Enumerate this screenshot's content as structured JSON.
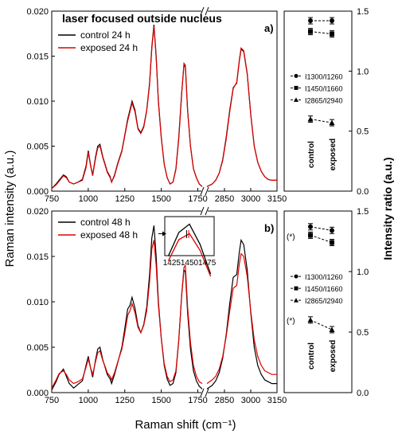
{
  "figure": {
    "ylabel_left": "Raman intensity (a.u.)",
    "xlabel": "Raman shift (cm⁻¹)",
    "ylabel_right": "Intensity ratio (a.u.)"
  },
  "chart_data": [
    {
      "type": "line",
      "panel": "a)",
      "title": "laser focused outside nucleus",
      "x_axis_break": [
        1780,
        2750
      ],
      "xlim": [
        750,
        3150
      ],
      "ylim": [
        0,
        0.02
      ],
      "xticks": [
        "750",
        "1000",
        "1250",
        "1500",
        "1750",
        "2850",
        "3000",
        "3150"
      ],
      "yticks": [
        "0.000",
        "0.005",
        "0.010",
        "0.015",
        "0.020"
      ],
      "grid": false,
      "legend_position": "top-left",
      "series": [
        {
          "name": "control 24 h",
          "color": "#000000",
          "x": [
            750,
            780,
            800,
            830,
            850,
            870,
            900,
            930,
            960,
            985,
            1000,
            1015,
            1030,
            1050,
            1065,
            1080,
            1100,
            1115,
            1130,
            1150,
            1160,
            1180,
            1200,
            1230,
            1250,
            1270,
            1285,
            1300,
            1320,
            1340,
            1360,
            1380,
            1400,
            1420,
            1435,
            1450,
            1465,
            1480,
            1500,
            1520,
            1540,
            1560,
            1580,
            1600,
            1620,
            1640,
            1655,
            1665,
            1680,
            1700,
            1720,
            1740,
            1760,
            1780,
            2750,
            2780,
            2800,
            2820,
            2840,
            2860,
            2880,
            2900,
            2920,
            2935,
            2945,
            2960,
            2980,
            3000,
            3020,
            3040,
            3060,
            3080,
            3100,
            3120,
            3150
          ],
          "y": [
            0.0003,
            0.0008,
            0.0012,
            0.0018,
            0.0016,
            0.001,
            0.0008,
            0.001,
            0.0013,
            0.0028,
            0.0045,
            0.003,
            0.0018,
            0.0038,
            0.005,
            0.0052,
            0.0038,
            0.003,
            0.0022,
            0.0016,
            0.001,
            0.0018,
            0.003,
            0.0045,
            0.0062,
            0.008,
            0.009,
            0.01,
            0.009,
            0.007,
            0.0065,
            0.0072,
            0.009,
            0.012,
            0.016,
            0.0185,
            0.015,
            0.01,
            0.006,
            0.003,
            0.0015,
            0.0008,
            0.001,
            0.0025,
            0.006,
            0.011,
            0.014,
            0.0138,
            0.009,
            0.005,
            0.0025,
            0.0015,
            0.0008,
            0.0005,
            0.0005,
            0.0008,
            0.0012,
            0.002,
            0.0035,
            0.006,
            0.009,
            0.0115,
            0.012,
            0.0145,
            0.0158,
            0.0155,
            0.013,
            0.0085,
            0.005,
            0.0032,
            0.0022,
            0.0016,
            0.0013,
            0.0012,
            0.0012
          ]
        },
        {
          "name": "exposed 24 h",
          "color": "#e00000",
          "x": [
            750,
            780,
            800,
            830,
            850,
            870,
            900,
            930,
            960,
            985,
            1000,
            1015,
            1030,
            1050,
            1065,
            1080,
            1100,
            1115,
            1130,
            1150,
            1160,
            1180,
            1200,
            1230,
            1250,
            1270,
            1285,
            1300,
            1320,
            1340,
            1360,
            1380,
            1400,
            1420,
            1435,
            1450,
            1465,
            1480,
            1500,
            1520,
            1540,
            1560,
            1580,
            1600,
            1620,
            1640,
            1655,
            1665,
            1680,
            1700,
            1720,
            1740,
            1760,
            1780,
            2750,
            2780,
            2800,
            2820,
            2840,
            2860,
            2880,
            2900,
            2920,
            2935,
            2945,
            2960,
            2980,
            3000,
            3020,
            3040,
            3060,
            3080,
            3100,
            3120,
            3150
          ],
          "y": [
            0.0003,
            0.0007,
            0.0011,
            0.0017,
            0.0015,
            0.001,
            0.0008,
            0.001,
            0.0012,
            0.0026,
            0.0043,
            0.0029,
            0.0017,
            0.0036,
            0.0048,
            0.005,
            0.0037,
            0.0029,
            0.0021,
            0.0015,
            0.001,
            0.0017,
            0.0029,
            0.0044,
            0.0061,
            0.0078,
            0.0088,
            0.0098,
            0.0088,
            0.0069,
            0.0064,
            0.0071,
            0.0089,
            0.0118,
            0.0158,
            0.0183,
            0.0148,
            0.0098,
            0.0059,
            0.003,
            0.0015,
            0.0008,
            0.001,
            0.0024,
            0.0058,
            0.0108,
            0.0142,
            0.014,
            0.0089,
            0.005,
            0.0025,
            0.0015,
            0.0008,
            0.0005,
            0.0005,
            0.0008,
            0.0012,
            0.002,
            0.0034,
            0.0058,
            0.0088,
            0.0114,
            0.0121,
            0.0146,
            0.0159,
            0.0156,
            0.0131,
            0.0086,
            0.005,
            0.0032,
            0.0022,
            0.0016,
            0.0013,
            0.0012,
            0.0012
          ]
        }
      ]
    },
    {
      "type": "line",
      "panel": "b)",
      "x_axis_break": [
        1780,
        2750
      ],
      "xlim": [
        750,
        3150
      ],
      "ylim": [
        0,
        0.02
      ],
      "xticks": [
        "750",
        "1000",
        "1250",
        "1500",
        "1750",
        "2850",
        "3000",
        "3150"
      ],
      "yticks": [
        "0.000",
        "0.005",
        "0.010",
        "0.015",
        "0.020"
      ],
      "grid": false,
      "legend_position": "top-left",
      "inset": {
        "xticks": [
          "1425",
          "1450",
          "1475"
        ],
        "xlim": [
          1415,
          1485
        ]
      },
      "series": [
        {
          "name": "control 48 h",
          "color": "#000000",
          "x": [
            750,
            780,
            800,
            830,
            850,
            870,
            900,
            930,
            960,
            985,
            1000,
            1015,
            1030,
            1050,
            1065,
            1080,
            1100,
            1115,
            1130,
            1150,
            1160,
            1180,
            1200,
            1230,
            1250,
            1270,
            1285,
            1300,
            1320,
            1340,
            1360,
            1380,
            1400,
            1420,
            1435,
            1450,
            1465,
            1480,
            1500,
            1520,
            1540,
            1560,
            1580,
            1600,
            1620,
            1640,
            1655,
            1665,
            1680,
            1700,
            1720,
            1740,
            1760,
            1780,
            2750,
            2780,
            2800,
            2820,
            2840,
            2860,
            2880,
            2900,
            2920,
            2935,
            2945,
            2960,
            2980,
            3000,
            3020,
            3040,
            3060,
            3080,
            3100,
            3120,
            3150
          ],
          "y": [
            0.0003,
            0.0012,
            0.002,
            0.0026,
            0.0018,
            0.001,
            0.0005,
            0.0009,
            0.0013,
            0.003,
            0.004,
            0.0028,
            0.0017,
            0.0036,
            0.0048,
            0.005,
            0.0036,
            0.0028,
            0.002,
            0.0015,
            0.001,
            0.002,
            0.0032,
            0.005,
            0.007,
            0.0092,
            0.0096,
            0.0105,
            0.0093,
            0.0074,
            0.0066,
            0.0075,
            0.0094,
            0.013,
            0.017,
            0.0184,
            0.015,
            0.01,
            0.006,
            0.003,
            0.0015,
            0.0008,
            0.001,
            0.0022,
            0.0058,
            0.0108,
            0.0135,
            0.0133,
            0.0088,
            0.0048,
            0.0024,
            0.0013,
            0.0007,
            0.0004,
            0.0004,
            0.0008,
            0.0013,
            0.0022,
            0.0038,
            0.0064,
            0.0098,
            0.0127,
            0.013,
            0.0155,
            0.0168,
            0.0163,
            0.0135,
            0.0088,
            0.005,
            0.003,
            0.002,
            0.0014,
            0.0012,
            0.001,
            0.001
          ]
        },
        {
          "name": "exposed 48 h",
          "color": "#e00000",
          "x": [
            750,
            780,
            800,
            830,
            850,
            870,
            900,
            930,
            960,
            985,
            1000,
            1015,
            1030,
            1050,
            1065,
            1080,
            1100,
            1115,
            1130,
            1150,
            1160,
            1180,
            1200,
            1230,
            1250,
            1270,
            1285,
            1300,
            1320,
            1340,
            1360,
            1380,
            1400,
            1420,
            1435,
            1450,
            1465,
            1480,
            1500,
            1520,
            1540,
            1560,
            1580,
            1600,
            1620,
            1640,
            1655,
            1665,
            1680,
            1700,
            1720,
            1740,
            1760,
            1780,
            2750,
            2780,
            2800,
            2820,
            2840,
            2860,
            2880,
            2900,
            2920,
            2935,
            2945,
            2960,
            2980,
            3000,
            3020,
            3040,
            3060,
            3080,
            3100,
            3120,
            3150
          ],
          "y": [
            0.0005,
            0.0014,
            0.0021,
            0.0024,
            0.002,
            0.0014,
            0.001,
            0.0012,
            0.0015,
            0.0028,
            0.0037,
            0.0028,
            0.002,
            0.0034,
            0.0044,
            0.0046,
            0.0035,
            0.0029,
            0.0022,
            0.0018,
            0.0014,
            0.0022,
            0.0033,
            0.0048,
            0.0065,
            0.0085,
            0.009,
            0.0098,
            0.0088,
            0.0072,
            0.0066,
            0.0074,
            0.009,
            0.0122,
            0.0158,
            0.0168,
            0.014,
            0.0096,
            0.006,
            0.0032,
            0.0018,
            0.0012,
            0.0014,
            0.0024,
            0.0058,
            0.0108,
            0.0138,
            0.014,
            0.0094,
            0.0055,
            0.003,
            0.0018,
            0.0012,
            0.001,
            0.001,
            0.0014,
            0.0018,
            0.0026,
            0.004,
            0.0062,
            0.009,
            0.0115,
            0.0118,
            0.0142,
            0.0153,
            0.015,
            0.0128,
            0.009,
            0.0058,
            0.004,
            0.003,
            0.0024,
            0.0022,
            0.002,
            0.002
          ]
        }
      ]
    },
    {
      "type": "scatter",
      "panel": "a) ratios",
      "categories": [
        "control",
        "exposed"
      ],
      "ylim": [
        0,
        1.5
      ],
      "yticks": [
        "0.0",
        "0.5",
        "1.0",
        "1.5"
      ],
      "ylabel": "Intensity ratio (a.u.)",
      "legend_position": "center-right",
      "series": [
        {
          "name": "I1300/I1260",
          "marker": "circle",
          "values": [
            1.42,
            1.42
          ]
        },
        {
          "name": "I1450/I1660",
          "marker": "square",
          "values": [
            1.33,
            1.31
          ]
        },
        {
          "name": "I2865/I2940",
          "marker": "triangle",
          "values": [
            0.6,
            0.57
          ]
        }
      ]
    },
    {
      "type": "scatter",
      "panel": "b) ratios",
      "categories": [
        "control",
        "exposed"
      ],
      "ylim": [
        0,
        1.5
      ],
      "yticks": [
        "0.0",
        "0.5",
        "1.0",
        "1.5"
      ],
      "ylabel": "Intensity ratio (a.u.)",
      "legend_position": "center-right",
      "annotations": [
        "(*)",
        "(*)"
      ],
      "series": [
        {
          "name": "I1300/I1260",
          "marker": "circle",
          "values": [
            1.37,
            1.34
          ]
        },
        {
          "name": "I1450/I1660",
          "marker": "square",
          "values": [
            1.3,
            1.24
          ]
        },
        {
          "name": "I2865/I2940",
          "marker": "triangle",
          "values": [
            0.6,
            0.52
          ]
        }
      ]
    }
  ]
}
